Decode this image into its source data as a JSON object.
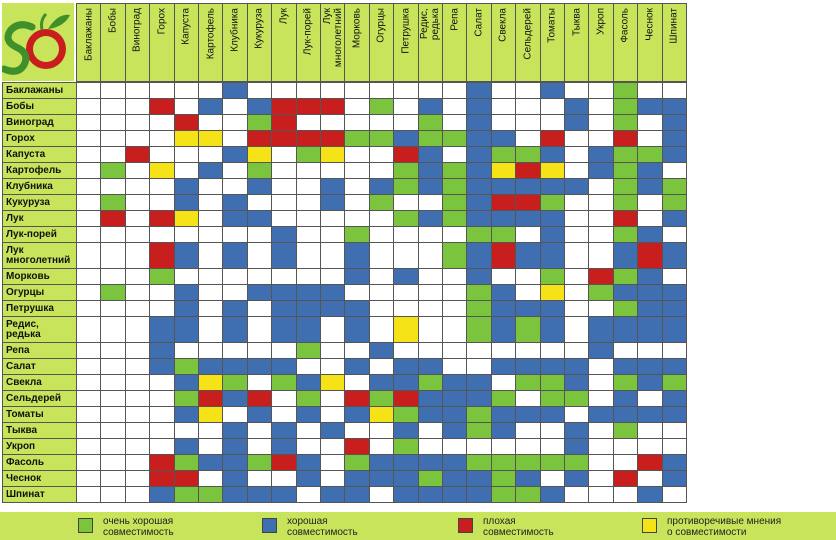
{
  "colors": {
    "header": "#c8e45a",
    "very_good": "#7ac43e",
    "good": "#3f6fb0",
    "bad": "#c81e1e",
    "conflicting": "#f5e318",
    "empty": "#ffffff"
  },
  "logo": {
    "letters": "SD",
    "name": "logo"
  },
  "columns": [
    "Баклажаны",
    "Бобы",
    "Виноград",
    "Горох",
    "Капуста",
    "Картофель",
    "Клубника",
    "Кукуруза",
    "Лук",
    "Лук-порей",
    "Лук\nмноголетний",
    "Морковь",
    "Огурцы",
    "Петрушка",
    "Редис,\nредька",
    "Репа",
    "Салат",
    "Свекла",
    "Сельдерей",
    "Томаты",
    "Тыква",
    "Укроп",
    "Фасоль",
    "Чеснок",
    "Шпинат"
  ],
  "rows": [
    "Баклажаны",
    "Бобы",
    "Виноград",
    "Горох",
    "Капуста",
    "Картофель",
    "Клубника",
    "Кукуруза",
    "Лук",
    "Лук-порей",
    "Лук\nмноголетний",
    "Морковь",
    "Огурцы",
    "Петрушка",
    "Редис,\nредька",
    "Репа",
    "Салат",
    "Свекла",
    "Сельдерей",
    "Томаты",
    "Тыква",
    "Укроп",
    "Фасоль",
    "Чеснок",
    "Шпинат"
  ],
  "matrix": [
    "......B.........B..B..G..",
    "...R.B.BRRR.G.B.B...B.GBB",
    "....R..GR.....G.B...B.G.B",
    "....YY.RRRRGGBGGBB.R..R.B",
    "..R...BY.GY..RB.BGGB.BGGB",
    ".G.Y.B.G.....GBGBYRY.BGB.",
    "....B..B..B.BGBGBBBBB.GBG",
    ".G..B.B...B.G..GBRRG..G.G",
    ".R.RY.BB.....GBGBBBB..R.B",
    "........B..G....GG.B..GB.",
    "...RB.B.B..B...GBRBB..BRB",
    "...G.......B.B..B..G.RGB.",
    ".G..B..BBBB.....GB.Y.GBBB",
    "....B.B.BBBB....GBBB..GBB",
    "...BB.B.BB.B.Y..GBGB.BBBB",
    "...B.....G..B........B...",
    "...BGBBBB..B.BB..BBBB.BBB",
    "....BYG.GBY.BBGBB.GGB.GBG",
    "....GRBR.G.RGRBBBG.GG.B.B",
    "....BY.B.B.BYGBBGBBB.BBBB",
    "......B.B.B..B.BGB..B.G..",
    "....B.B.B..R.G......B....",
    "...RGBBGRB.GBBBBGGGGG..RB",
    "...RR.B..B.BBBGBBGB.B.R.B",
    "...BGGBBB.BB.BBBBGGB...B."
  ],
  "legend": [
    {
      "key": "G",
      "label": "очень хорошая\nсовместимость",
      "color": "#7ac43e"
    },
    {
      "key": "B",
      "label": "хорошая\nсовместимость",
      "color": "#3f6fb0"
    },
    {
      "key": "R",
      "label": "плохая\nсовместимость",
      "color": "#c81e1e"
    },
    {
      "key": "Y",
      "label": "противоречивые мнения\nо совместимости",
      "color": "#f5e318"
    }
  ]
}
